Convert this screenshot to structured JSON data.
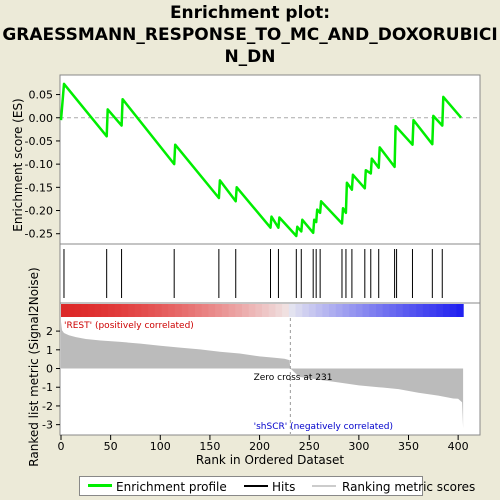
{
  "title_lines": [
    "Enrichment plot:",
    "GRAESSMANN_RESPONSE_TO_MC_AND_DOXORUBICI",
    "N_DN"
  ],
  "colors": {
    "es_line": "#00ee00",
    "hits": "#000000",
    "ranked_fill": "#bbbbbb",
    "zero_cross_line": "#999999",
    "pos_label": "#cc0000",
    "neg_label": "#0000cc",
    "background": "#ecead8",
    "plot_bg": "#ffffff"
  },
  "legend": {
    "enrichment_profile": "Enrichment profile",
    "hits": "Hits",
    "ranking_metric_scores": "Ranking metric scores"
  },
  "chart_data": {
    "type": "line",
    "top_panel": {
      "ylabel": "Enrichment score (ES)",
      "ylim": [
        -0.27,
        0.09
      ],
      "yticks": [
        0.05,
        0.0,
        -0.05,
        -0.1,
        -0.15,
        -0.2,
        -0.25
      ],
      "ytick_labels": [
        "0.05",
        "0.00",
        "-0.05",
        "-0.10",
        "-0.15",
        "-0.20",
        "-0.25"
      ],
      "series": [
        {
          "x": [
            0,
            3,
            46,
            47,
            61,
            62,
            114,
            115,
            159,
            160,
            176,
            177,
            211,
            212,
            219,
            220,
            237,
            238,
            242,
            243,
            254,
            255,
            257,
            258,
            261,
            262,
            283,
            284,
            287,
            288,
            293,
            294,
            306,
            307,
            312,
            313,
            320,
            321,
            336,
            337,
            354,
            355,
            374,
            375,
            384,
            385,
            403
          ],
          "y": [
            -0.005,
            0.073,
            -0.04,
            0.018,
            -0.017,
            0.04,
            -0.1,
            -0.058,
            -0.173,
            -0.135,
            -0.18,
            -0.15,
            -0.237,
            -0.213,
            -0.237,
            -0.215,
            -0.255,
            -0.235,
            -0.245,
            -0.22,
            -0.248,
            -0.22,
            -0.225,
            -0.198,
            -0.205,
            -0.18,
            -0.228,
            -0.195,
            -0.205,
            -0.14,
            -0.155,
            -0.123,
            -0.152,
            -0.113,
            -0.12,
            -0.088,
            -0.108,
            -0.064,
            -0.106,
            -0.018,
            -0.058,
            -0.005,
            -0.057,
            0.004,
            -0.017,
            0.045,
            0.0
          ]
        }
      ]
    },
    "hits_panel": {
      "x": [
        3,
        46,
        61,
        114,
        159,
        176,
        211,
        219,
        237,
        242,
        254,
        257,
        261,
        283,
        287,
        293,
        306,
        312,
        320,
        336,
        338,
        354,
        374,
        384
      ]
    },
    "bottom_panel": {
      "ylabel": "Ranked list metric (Signal2Noise)",
      "xlabel": "Rank in Ordered Dataset",
      "ylim": [
        -3.5,
        2.7
      ],
      "yticks": [
        2,
        1,
        0,
        -1,
        -2,
        -3
      ],
      "ytick_labels": [
        "2",
        "1",
        "0",
        "-1",
        "-2",
        "-3"
      ],
      "xlim": [
        0,
        420
      ],
      "xticks": [
        0,
        50,
        100,
        150,
        200,
        250,
        300,
        350,
        400
      ],
      "xtick_labels": [
        "0",
        "50",
        "100",
        "150",
        "200",
        "250",
        "300",
        "350",
        "400"
      ],
      "metric_curve": {
        "x": [
          0,
          1,
          3,
          8,
          15,
          25,
          40,
          60,
          80,
          100,
          120,
          140,
          160,
          180,
          200,
          215,
          225,
          230,
          231,
          240,
          260,
          280,
          300,
          320,
          340,
          360,
          380,
          395,
          400,
          404,
          405
        ],
        "y": [
          2.5,
          2.05,
          1.9,
          1.78,
          1.68,
          1.58,
          1.5,
          1.42,
          1.33,
          1.22,
          1.12,
          1.02,
          0.9,
          0.8,
          0.65,
          0.58,
          0.52,
          0.45,
          0.0,
          -0.45,
          -0.6,
          -0.75,
          -0.9,
          -1.0,
          -1.1,
          -1.3,
          -1.45,
          -1.6,
          -1.62,
          -1.8,
          -3.2
        ]
      },
      "zero_cross_label": "Zero cross at 231",
      "zero_cross_x": 231,
      "pos_label": "'REST' (positively correlated)",
      "neg_label": "'shSCR' (negatively correlated)"
    },
    "rank_max": 405
  }
}
